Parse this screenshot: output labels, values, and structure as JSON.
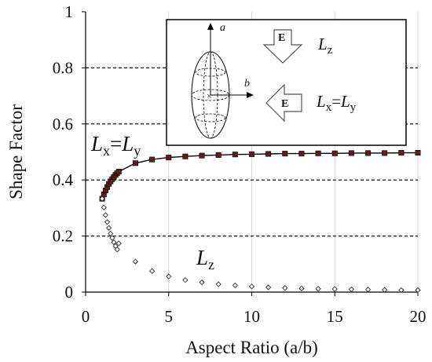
{
  "chart_data": {
    "type": "scatter",
    "title": "",
    "xlabel": "Aspect Ratio (a/b)",
    "ylabel": "Shape Factor",
    "xlim": [
      0,
      20
    ],
    "ylim": [
      0,
      1
    ],
    "x_ticks": [
      "0",
      "5",
      "10",
      "15",
      "20"
    ],
    "y_ticks": [
      "0",
      "0.2",
      "0.4",
      "0.6",
      "0.8",
      "1"
    ],
    "y_grid": [
      0.2,
      0.4,
      0.6,
      0.8
    ],
    "x_grid": [
      5,
      10,
      15,
      20
    ],
    "series": [
      {
        "name": "Lx=Ly",
        "marker": "filled-square",
        "line": true,
        "x": [
          1.0,
          1.1,
          1.2,
          1.3,
          1.4,
          1.5,
          1.6,
          1.7,
          1.8,
          1.9,
          2.0,
          3,
          4,
          5,
          6,
          7,
          8,
          9,
          10,
          11,
          12,
          13,
          14,
          15,
          16,
          17,
          18,
          19,
          20
        ],
        "y": [
          0.333,
          0.349,
          0.363,
          0.375,
          0.386,
          0.395,
          0.403,
          0.411,
          0.418,
          0.424,
          0.43,
          0.46,
          0.473,
          0.48,
          0.484,
          0.487,
          0.489,
          0.491,
          0.492,
          0.493,
          0.494,
          0.494,
          0.495,
          0.495,
          0.496,
          0.496,
          0.496,
          0.497,
          0.497
        ]
      },
      {
        "name": "Lz",
        "marker": "open-diamond",
        "line": false,
        "x": [
          1.0,
          1.1,
          1.2,
          1.3,
          1.4,
          1.5,
          1.6,
          1.7,
          1.8,
          1.9,
          2.0,
          3,
          4,
          5,
          6,
          7,
          8,
          9,
          10,
          11,
          12,
          13,
          14,
          15,
          16,
          17,
          18,
          19,
          20
        ],
        "y": [
          0.333,
          0.302,
          0.275,
          0.25,
          0.229,
          0.209,
          0.193,
          0.178,
          0.164,
          0.152,
          0.174,
          0.109,
          0.075,
          0.056,
          0.043,
          0.035,
          0.028,
          0.024,
          0.02,
          0.017,
          0.015,
          0.013,
          0.012,
          0.011,
          0.01,
          0.009,
          0.008,
          0.007,
          0.007
        ]
      }
    ],
    "annotations": {
      "lxy_label": {
        "main1": "L",
        "sub1": "x",
        "eq": "=",
        "main2": "L",
        "sub2": "y"
      },
      "lz_label": {
        "main": "L",
        "sub": "z"
      }
    },
    "inset": {
      "axis_a": "a",
      "axis_b": "b",
      "field_symbol": "E",
      "legend_lz": {
        "main": "L",
        "sub": "z"
      },
      "legend_lxy": {
        "main1": "L",
        "sub1": "x",
        "eq": "=",
        "main2": "L",
        "sub2": "y"
      }
    }
  }
}
